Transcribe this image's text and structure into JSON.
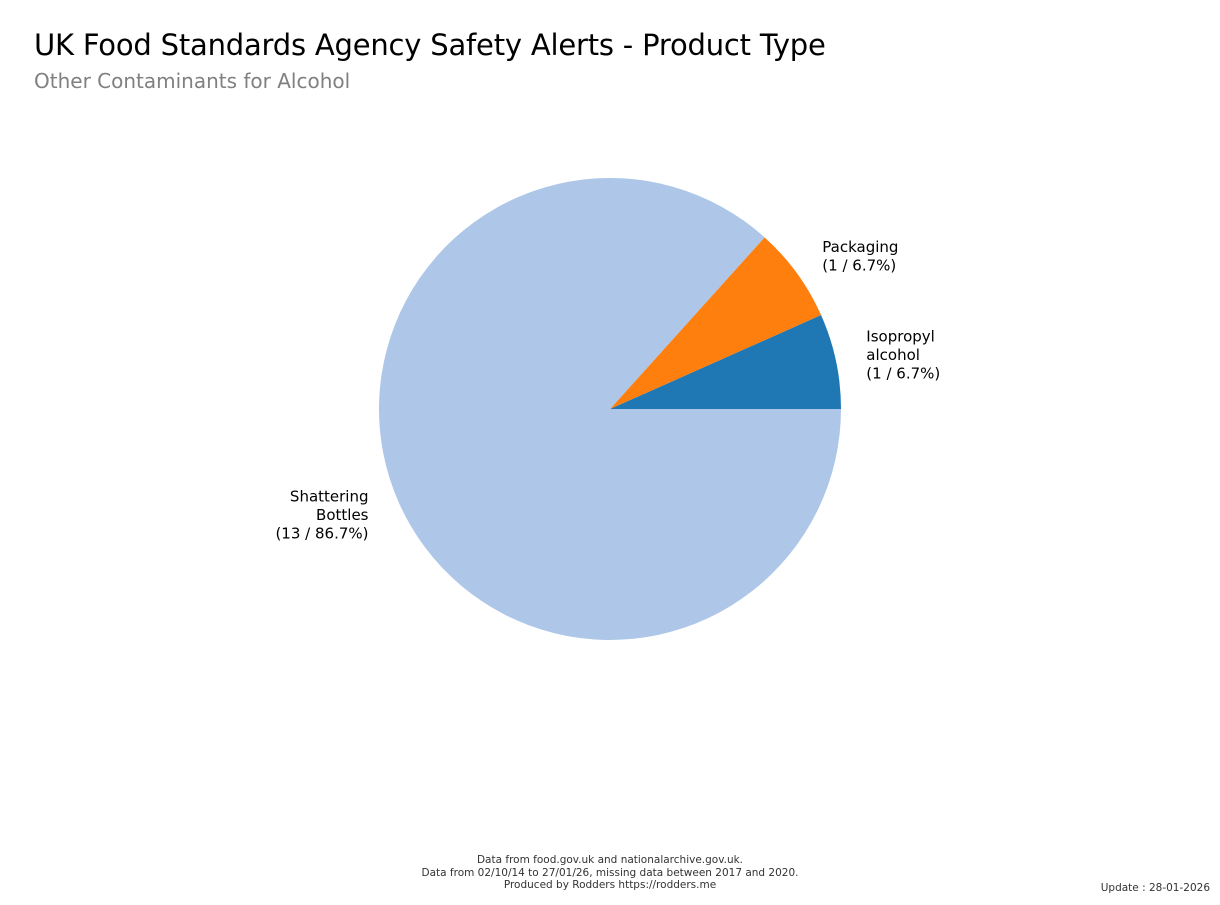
{
  "header": {
    "title": "UK Food Standards Agency Safety Alerts - Product Type",
    "subtitle": "Other Contaminants for Alcohol"
  },
  "chart_data": {
    "type": "pie",
    "title": "UK Food Standards Agency Safety Alerts - Product Type",
    "subtitle": "Other Contaminants for Alcohol",
    "slices": [
      {
        "name": "Isopropyl alcohol",
        "value": 1,
        "percent": 6.7,
        "label_lines": [
          "Isopropyl",
          "alcohol",
          "(1 / 6.7%)"
        ],
        "color": "#1f77b4"
      },
      {
        "name": "Packaging",
        "value": 1,
        "percent": 6.7,
        "label_lines": [
          "Packaging",
          "(1 / 6.7%)"
        ],
        "color": "#ff7f0e"
      },
      {
        "name": "Shattering Bottles",
        "value": 13,
        "percent": 86.7,
        "label_lines": [
          "Shattering",
          "Bottles",
          "(13 / 86.7%)"
        ],
        "color": "#aec7e8"
      }
    ],
    "start_angle_deg": 0,
    "direction": "counterclockwise",
    "legend": "none"
  },
  "footer": {
    "credits": [
      "Data from food.gov.uk and nationalarchive.gov.uk.",
      "Data from 02/10/14 to 27/01/26, missing data between 2017 and 2020.",
      "Produced by Rodders https://rodders.me"
    ],
    "update": "Update : 28-01-2026"
  }
}
